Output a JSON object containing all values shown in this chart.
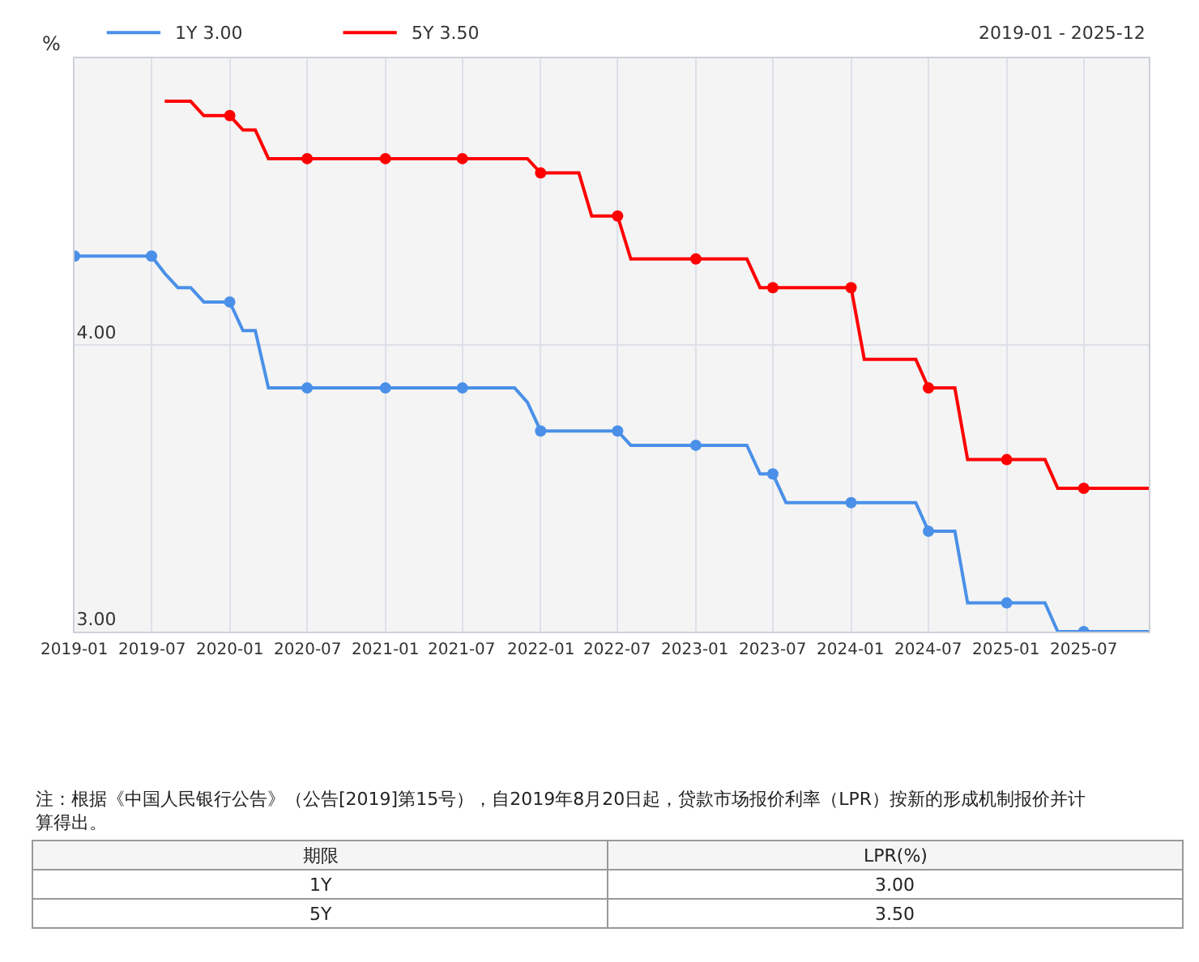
{
  "chart_data": {
    "type": "line",
    "ylabel": "%",
    "x": [
      "2019-01",
      "2019-02",
      "2019-03",
      "2019-04",
      "2019-05",
      "2019-06",
      "2019-07",
      "2019-08",
      "2019-09",
      "2019-10",
      "2019-11",
      "2019-12",
      "2020-01",
      "2020-02",
      "2020-03",
      "2020-04",
      "2020-05",
      "2020-06",
      "2020-07",
      "2020-08",
      "2020-09",
      "2020-10",
      "2020-11",
      "2020-12",
      "2021-01",
      "2021-02",
      "2021-03",
      "2021-04",
      "2021-05",
      "2021-06",
      "2021-07",
      "2021-08",
      "2021-09",
      "2021-10",
      "2021-11",
      "2021-12",
      "2022-01",
      "2022-02",
      "2022-03",
      "2022-04",
      "2022-05",
      "2022-06",
      "2022-07",
      "2022-08",
      "2022-09",
      "2022-10",
      "2022-11",
      "2022-12",
      "2023-01",
      "2023-02",
      "2023-03",
      "2023-04",
      "2023-05",
      "2023-06",
      "2023-07",
      "2023-08",
      "2023-09",
      "2023-10",
      "2023-11",
      "2023-12",
      "2024-01",
      "2024-02",
      "2024-03",
      "2024-04",
      "2024-05",
      "2024-06",
      "2024-07",
      "2024-08",
      "2024-09",
      "2024-10",
      "2024-11",
      "2024-12",
      "2025-01",
      "2025-02",
      "2025-03",
      "2025-04",
      "2025-05",
      "2025-06",
      "2025-07",
      "2025-08",
      "2025-09",
      "2025-10",
      "2025-11",
      "2025-12"
    ],
    "series": [
      {
        "name": "1Y 3.00",
        "color": "#4a90e8",
        "values": [
          4.31,
          4.31,
          4.31,
          4.31,
          4.31,
          4.31,
          4.31,
          4.25,
          4.2,
          4.2,
          4.15,
          4.15,
          4.15,
          4.05,
          4.05,
          3.85,
          3.85,
          3.85,
          3.85,
          3.85,
          3.85,
          3.85,
          3.85,
          3.85,
          3.85,
          3.85,
          3.85,
          3.85,
          3.85,
          3.85,
          3.85,
          3.85,
          3.85,
          3.85,
          3.85,
          3.8,
          3.7,
          3.7,
          3.7,
          3.7,
          3.7,
          3.7,
          3.7,
          3.65,
          3.65,
          3.65,
          3.65,
          3.65,
          3.65,
          3.65,
          3.65,
          3.65,
          3.65,
          3.55,
          3.55,
          3.45,
          3.45,
          3.45,
          3.45,
          3.45,
          3.45,
          3.45,
          3.45,
          3.45,
          3.45,
          3.45,
          3.35,
          3.35,
          3.35,
          3.1,
          3.1,
          3.1,
          3.1,
          3.1,
          3.1,
          3.1,
          3.0,
          3.0,
          3.0,
          3.0,
          3.0,
          3.0,
          3.0,
          3.0
        ]
      },
      {
        "name": "5Y 3.50",
        "color": "#ff0000",
        "values": [
          null,
          null,
          null,
          null,
          null,
          null,
          null,
          4.85,
          4.85,
          4.85,
          4.8,
          4.8,
          4.8,
          4.75,
          4.75,
          4.65,
          4.65,
          4.65,
          4.65,
          4.65,
          4.65,
          4.65,
          4.65,
          4.65,
          4.65,
          4.65,
          4.65,
          4.65,
          4.65,
          4.65,
          4.65,
          4.65,
          4.65,
          4.65,
          4.65,
          4.65,
          4.6,
          4.6,
          4.6,
          4.6,
          4.45,
          4.45,
          4.45,
          4.3,
          4.3,
          4.3,
          4.3,
          4.3,
          4.3,
          4.3,
          4.3,
          4.3,
          4.3,
          4.2,
          4.2,
          4.2,
          4.2,
          4.2,
          4.2,
          4.2,
          4.2,
          3.95,
          3.95,
          3.95,
          3.95,
          3.95,
          3.85,
          3.85,
          3.85,
          3.6,
          3.6,
          3.6,
          3.6,
          3.6,
          3.6,
          3.6,
          3.5,
          3.5,
          3.5,
          3.5,
          3.5,
          3.5,
          3.5,
          3.5
        ]
      },
      {
        "type": "scatter",
        "color": "#4a90e8",
        "x": [
          "2019-01",
          "2019-07",
          "2020-01",
          "2020-07",
          "2021-01",
          "2021-07",
          "2022-01",
          "2022-07",
          "2023-01",
          "2023-07",
          "2024-01",
          "2024-07",
          "2025-01",
          "2025-07"
        ],
        "values": [
          4.31,
          4.31,
          4.15,
          3.85,
          3.85,
          3.85,
          3.7,
          3.7,
          3.65,
          3.55,
          3.45,
          3.35,
          3.1,
          3.0
        ]
      },
      {
        "type": "scatter",
        "color": "#ff0000",
        "x": [
          "2020-01",
          "2020-07",
          "2021-01",
          "2021-07",
          "2022-01",
          "2022-07",
          "2023-01",
          "2023-07",
          "2024-01",
          "2024-07",
          "2025-01",
          "2025-07"
        ],
        "values": [
          4.8,
          4.65,
          4.65,
          4.65,
          4.6,
          4.45,
          4.3,
          4.2,
          4.2,
          3.85,
          3.6,
          3.5
        ]
      }
    ],
    "xlim": [
      "2019-01",
      "2025-12"
    ],
    "xticks": [
      "2019-01",
      "2019-07",
      "2020-01",
      "2020-07",
      "2021-01",
      "2021-07",
      "2022-01",
      "2022-07",
      "2023-01",
      "2023-07",
      "2024-01",
      "2024-07",
      "2025-01",
      "2025-07"
    ],
    "ylim": [
      3.0,
      5.0
    ],
    "yticks": [
      {
        "value": 3,
        "label": "3.00"
      },
      {
        "value": 4,
        "label": "4.00"
      }
    ],
    "grid": true,
    "legend": "top left",
    "line_style": "solid",
    "annotations": [
      "2019-01 - 2025-12",
      "注：根据《中国人民银行公告》（公告[2019]第15号），自2019年8月20日起，贷款市场报价利率（LPR）按新的形成机制报价并计算得出。",
      "期限",
      "LPR(%)",
      "1Y",
      "3.00",
      "5Y",
      "3.50"
    ]
  }
}
